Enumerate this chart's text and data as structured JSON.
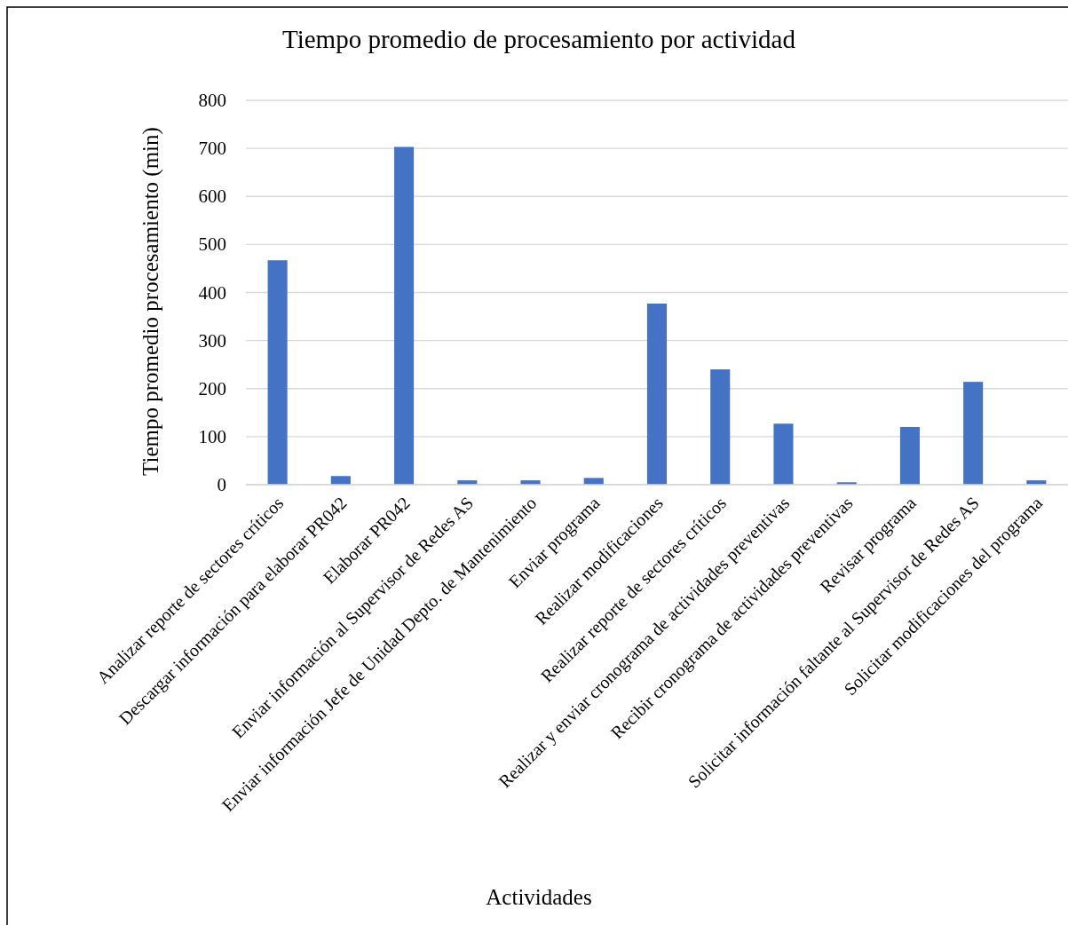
{
  "chart_data": {
    "type": "bar",
    "title": "Tiempo promedio de procesamiento por actividad",
    "xlabel": "Actividades",
    "ylabel": "Tiempo promedio procesamiento (min)",
    "categories": [
      "Analizar reporte de sectores críticos",
      "Descargar información para elaborar PR042",
      "Elaborar PR042",
      "Enviar información al Supervisor de Redes AS",
      "Enviar información Jefe de Unidad Depto. de Mantenimiento",
      "Enviar programa",
      "Realizar modificaciones",
      "Realizar reporte de sectores críticos",
      "Realizar y enviar cronograma de actividades preventivas",
      "Recibir cronograma de actividades preventivas",
      "Revisar programa",
      "Solicitar información faltante al Supervisor de Redes AS",
      "Solicitar modificaciones del programa"
    ],
    "values": [
      467,
      18,
      703,
      9,
      9,
      14,
      377,
      240,
      127,
      5,
      120,
      214,
      9
    ],
    "color": "#4472c4",
    "ylim": [
      0,
      800
    ],
    "yticks": [
      0,
      100,
      200,
      300,
      400,
      500,
      600,
      700,
      800
    ],
    "grid": "y"
  }
}
